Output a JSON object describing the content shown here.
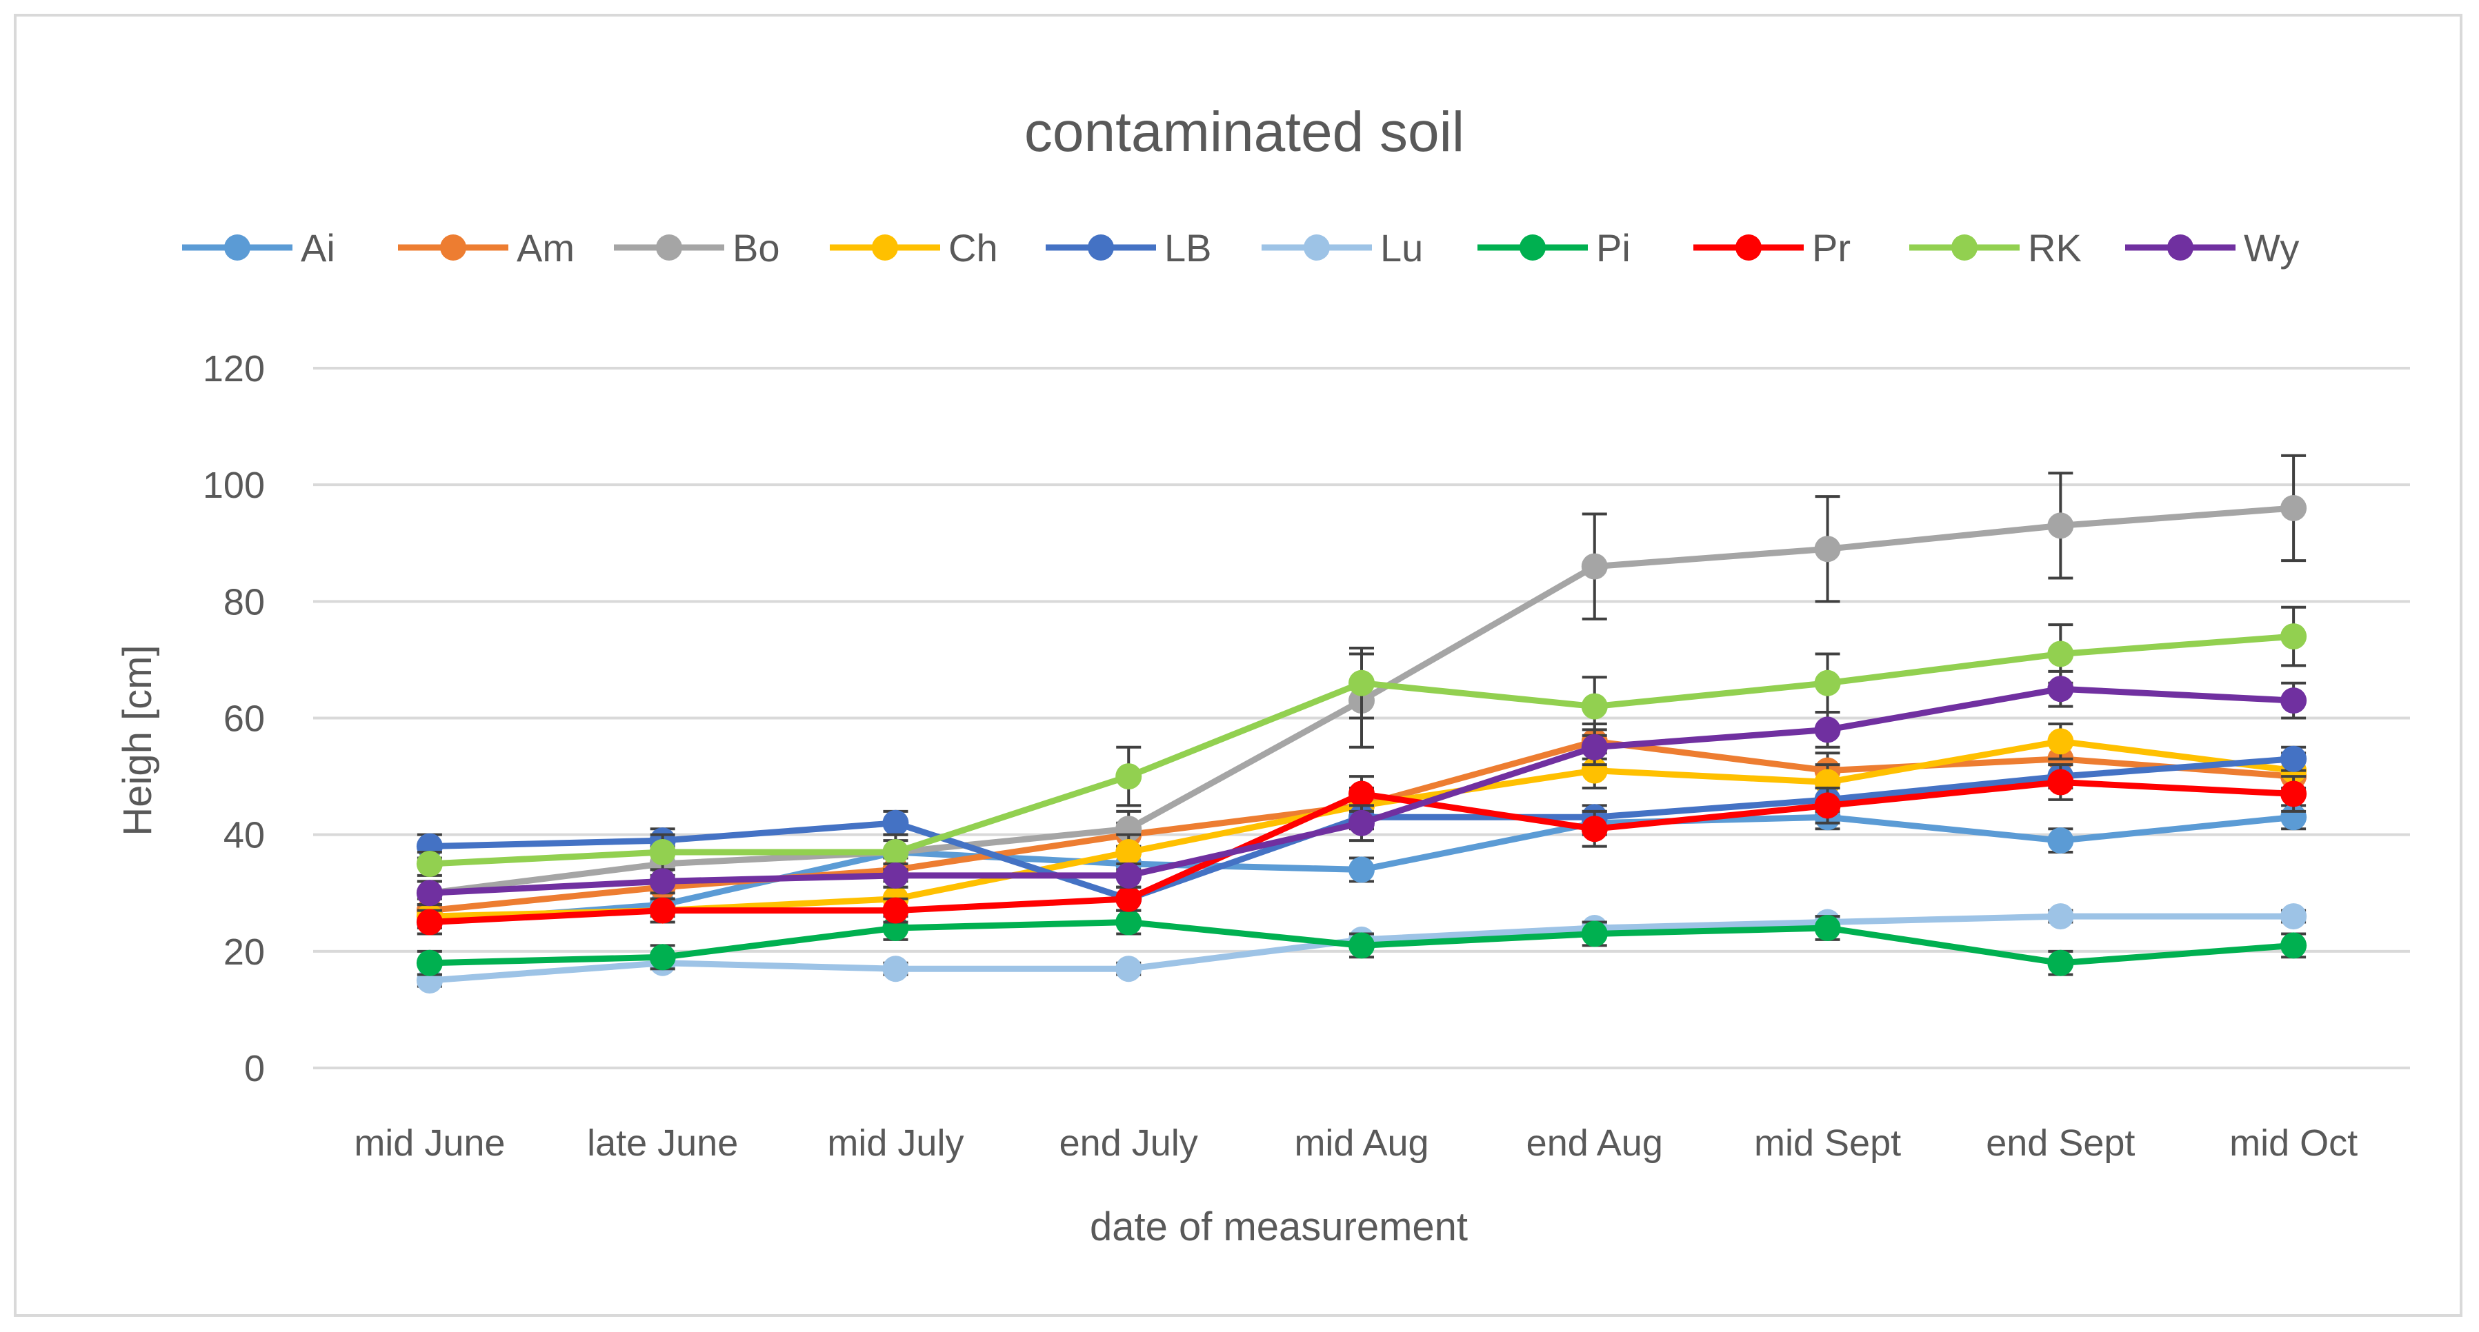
{
  "chart_data": {
    "type": "line",
    "title": "contaminated soil",
    "xlabel": "date of measurement",
    "ylabel": "Heigh [cm]",
    "ylim": [
      0,
      120
    ],
    "yticks": [
      0,
      20,
      40,
      60,
      80,
      100,
      120
    ],
    "grid": true,
    "legend": "top",
    "categories": [
      "mid June",
      "late June",
      "mid July",
      "end July",
      "mid Aug",
      "end Aug",
      "mid Sept",
      "end Sept",
      "mid Oct"
    ],
    "series": [
      {
        "name": "Ai",
        "color": "#5b9bd5",
        "values": [
          25,
          28,
          37,
          35,
          34,
          42,
          43,
          39,
          43
        ],
        "errors": [
          2,
          2,
          2,
          2,
          2,
          2,
          2,
          2,
          2
        ]
      },
      {
        "name": "Am",
        "color": "#ed7d31",
        "values": [
          27,
          31,
          34,
          40,
          45,
          56,
          51,
          53,
          50
        ],
        "errors": [
          2,
          2,
          2,
          2,
          3,
          3,
          3,
          3,
          3
        ]
      },
      {
        "name": "Bo",
        "color": "#a5a5a5",
        "values": [
          30,
          35,
          37,
          41,
          63,
          86,
          89,
          93,
          96
        ],
        "errors": [
          2,
          3,
          3,
          3,
          8,
          9,
          9,
          9,
          9
        ]
      },
      {
        "name": "Ch",
        "color": "#ffc000",
        "values": [
          26,
          27,
          29,
          37,
          45,
          51,
          49,
          56,
          51
        ],
        "errors": [
          2,
          2,
          2,
          3,
          3,
          3,
          3,
          3,
          3
        ]
      },
      {
        "name": "LB",
        "color": "#4472c4",
        "values": [
          38,
          39,
          42,
          29,
          43,
          43,
          46,
          50,
          53
        ],
        "errors": [
          2,
          2,
          2,
          2,
          2,
          2,
          2,
          2,
          2
        ]
      },
      {
        "name": "Lu",
        "color": "#9dc3e6",
        "values": [
          15,
          18,
          17,
          17,
          22,
          24,
          25,
          26,
          26
        ],
        "errors": [
          1,
          1,
          1,
          1,
          1,
          1,
          1,
          1,
          1
        ]
      },
      {
        "name": "Pi",
        "color": "#00b050",
        "values": [
          18,
          19,
          24,
          25,
          21,
          23,
          24,
          18,
          21
        ],
        "errors": [
          2,
          2,
          2,
          2,
          2,
          2,
          2,
          2,
          2
        ]
      },
      {
        "name": "Pr",
        "color": "#ff0000",
        "values": [
          25,
          27,
          27,
          29,
          47,
          41,
          45,
          49,
          47
        ],
        "errors": [
          2,
          2,
          2,
          2,
          3,
          3,
          3,
          3,
          3
        ]
      },
      {
        "name": "RK",
        "color": "#92d050",
        "values": [
          35,
          37,
          37,
          50,
          66,
          62,
          66,
          71,
          74
        ],
        "errors": [
          2,
          3,
          3,
          5,
          6,
          5,
          5,
          5,
          5
        ]
      },
      {
        "name": "Wy",
        "color": "#7030a0",
        "values": [
          30,
          32,
          33,
          33,
          42,
          55,
          58,
          65,
          63
        ],
        "errors": [
          2,
          2,
          2,
          2,
          3,
          3,
          3,
          3,
          3
        ]
      }
    ]
  }
}
